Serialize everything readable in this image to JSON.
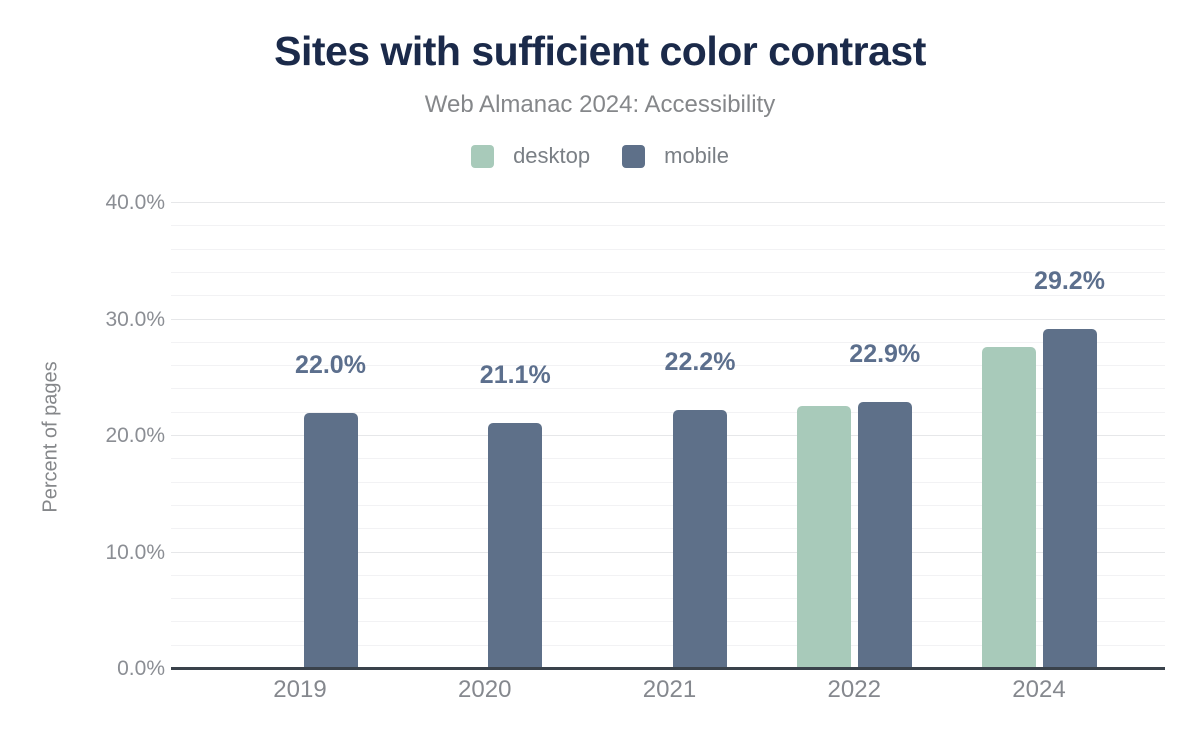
{
  "chart_data": {
    "type": "bar",
    "title": "Sites with sufficient color contrast",
    "subtitle": "Web Almanac 2024: Accessibility",
    "categories": [
      "2019",
      "2020",
      "2021",
      "2022",
      "2024"
    ],
    "series": [
      {
        "name": "desktop",
        "color": "#a8caba",
        "values": [
          null,
          null,
          null,
          22.6,
          27.6
        ]
      },
      {
        "name": "mobile",
        "color": "#5e7089",
        "values": [
          22.0,
          21.1,
          22.2,
          22.9,
          29.2
        ],
        "data_labels": [
          "22.0%",
          "21.1%",
          "22.2%",
          "22.9%",
          "29.2%"
        ]
      }
    ],
    "xlabel": "",
    "ylabel": "Percent of pages",
    "ylim": [
      0,
      40
    ],
    "yticks": [
      {
        "value": 0,
        "label": "0.0%"
      },
      {
        "value": 10,
        "label": "10.0%"
      },
      {
        "value": 20,
        "label": "20.0%"
      },
      {
        "value": 30,
        "label": "30.0%"
      },
      {
        "value": 40,
        "label": "40.0%"
      }
    ],
    "grid": {
      "minor_step": 2,
      "major_step": 10,
      "enabled": true
    },
    "legend_position": "top",
    "colors": {
      "background": "#ffffff",
      "title": "#1b2a4a",
      "subtitle": "#85878a",
      "axis_text": "#85888e",
      "data_label": "#5c6f8d",
      "axis_line": "#3a424b",
      "grid_major": "#e6e7e9",
      "grid_minor": "#f2f2f4",
      "desktop": "#a8caba",
      "mobile": "#5e7089"
    }
  }
}
